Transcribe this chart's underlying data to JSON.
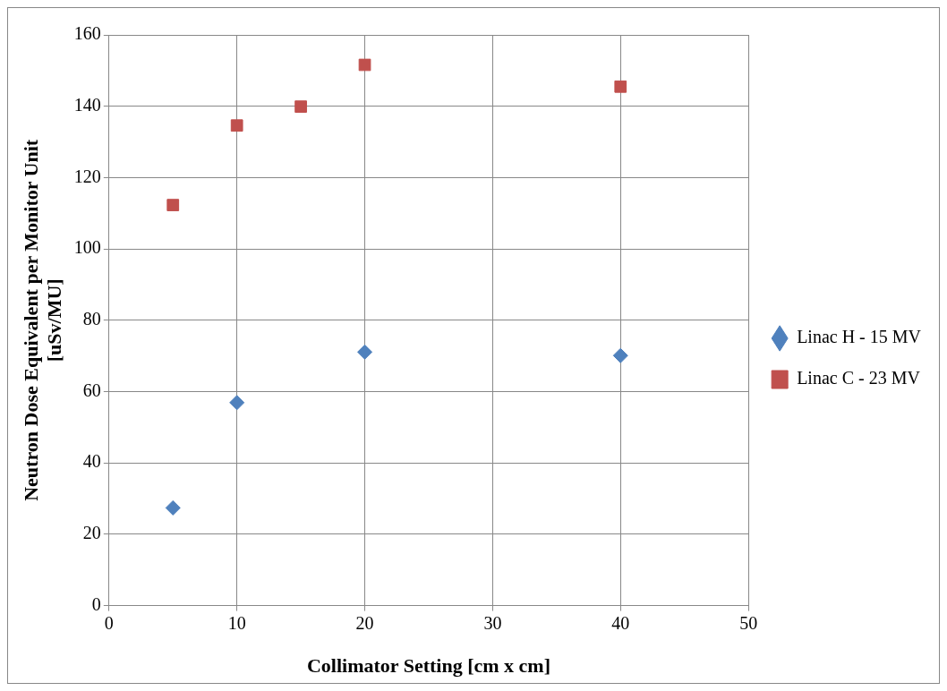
{
  "chart_data": {
    "type": "scatter",
    "xlabel": "Collimator Setting [cm x cm]",
    "ylabel": "Neutron Dose Equivalent per Monitor Unit\n[uSv/MU]",
    "xlim": [
      0,
      50
    ],
    "xticks": [
      0,
      10,
      20,
      30,
      40,
      50
    ],
    "ylim": [
      0,
      160
    ],
    "yticks": [
      0,
      20,
      40,
      60,
      80,
      100,
      120,
      140,
      160
    ],
    "grid": true,
    "legend": "right",
    "series": [
      {
        "name": "Linac H - 15 MV",
        "color": "#4f81bd",
        "marker": "diamond",
        "x": [
          5,
          10,
          20,
          40
        ],
        "values": [
          27.4,
          56.9,
          71.1,
          70.1
        ]
      },
      {
        "name": "Linac C - 23 MV",
        "color": "#c0504d",
        "marker": "square",
        "x": [
          5,
          10,
          15,
          20,
          40
        ],
        "values": [
          112.3,
          134.6,
          139.9,
          151.6,
          145.5
        ]
      }
    ]
  }
}
